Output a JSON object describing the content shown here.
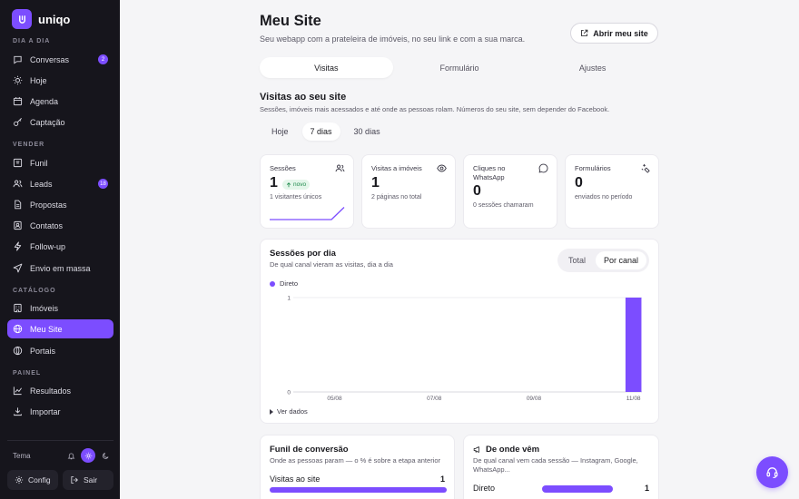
{
  "brand": {
    "name": "uniqo"
  },
  "sidebar": {
    "sections": [
      {
        "label": "DIA A DIA",
        "items": [
          {
            "label": "Conversas",
            "icon": "chat-icon",
            "badge": "2"
          },
          {
            "label": "Hoje",
            "icon": "sun-icon"
          },
          {
            "label": "Agenda",
            "icon": "calendar-icon"
          },
          {
            "label": "Captação",
            "icon": "key-icon"
          }
        ]
      },
      {
        "label": "VENDER",
        "items": [
          {
            "label": "Funil",
            "icon": "funnel-icon"
          },
          {
            "label": "Leads",
            "icon": "users-icon",
            "badge": "18"
          },
          {
            "label": "Propostas",
            "icon": "document-icon"
          },
          {
            "label": "Contatos",
            "icon": "contacts-icon"
          },
          {
            "label": "Follow-up",
            "icon": "bolt-icon"
          },
          {
            "label": "Envio em massa",
            "icon": "send-icon"
          }
        ]
      },
      {
        "label": "CATÁLOGO",
        "items": [
          {
            "label": "Imóveis",
            "icon": "building-icon"
          },
          {
            "label": "Meu Site",
            "icon": "globe-icon",
            "active": true
          },
          {
            "label": "Portais",
            "icon": "portal-icon"
          }
        ]
      },
      {
        "label": "PAINEL",
        "items": [
          {
            "label": "Resultados",
            "icon": "chart-icon"
          },
          {
            "label": "Importar",
            "icon": "download-icon"
          }
        ]
      }
    ],
    "theme_label": "Tema",
    "config_label": "Config",
    "logout_label": "Sair"
  },
  "header": {
    "title": "Meu Site",
    "subtitle": "Seu webapp com a prateleira de imóveis, no seu link e com a sua marca.",
    "open_site_label": "Abrir meu site"
  },
  "tabs": [
    "Visitas",
    "Formulário",
    "Ajustes"
  ],
  "visits": {
    "title": "Visitas ao seu site",
    "subtitle": "Sessões, imóveis mais acessados e até onde as pessoas rolam. Números do seu site, sem depender do Facebook.",
    "periods": [
      "Hoje",
      "7 dias",
      "30 dias"
    ],
    "active_period": "7 dias"
  },
  "kpis": [
    {
      "title": "Sessões",
      "value": "1",
      "badge": "novo",
      "foot": "1 visitantes únicos",
      "icon": "users-icon"
    },
    {
      "title": "Visitas a imóveis",
      "value": "1",
      "foot": "2 páginas no total",
      "icon": "eye-icon"
    },
    {
      "title": "Cliques no WhatsApp",
      "value": "0",
      "foot": "0 sessões chamaram",
      "icon": "whatsapp-icon"
    },
    {
      "title": "Formulários",
      "value": "0",
      "foot": "enviados no período",
      "icon": "sparkle-icon"
    }
  ],
  "sessions_chart": {
    "title": "Sessões por dia",
    "subtitle": "De qual canal vieram as visitas, dia a dia",
    "toggle": [
      "Total",
      "Por canal"
    ],
    "active_toggle": "Por canal",
    "see_data_label": "Ver dados"
  },
  "chart_data": {
    "type": "bar",
    "stacked": true,
    "categories": [
      "05/08",
      "06/08",
      "07/08",
      "08/08",
      "09/08",
      "10/08",
      "11/08"
    ],
    "tick_labels": [
      "05/08",
      "07/08",
      "09/08",
      "11/08"
    ],
    "series": [
      {
        "name": "Direto",
        "values": [
          0,
          0,
          0,
          0,
          0,
          0,
          1
        ],
        "color": "#7c4dff"
      }
    ],
    "ylim": [
      0,
      1
    ],
    "yticks": [
      0,
      1
    ],
    "grid": true,
    "legend": "top-left"
  },
  "funnel": {
    "title": "Funil de conversão",
    "subtitle": "Onde as pessoas param — o % é sobre a etapa anterior",
    "rows": [
      {
        "label": "Visitas ao site",
        "value": "1",
        "fraction": 1.0
      }
    ]
  },
  "origin": {
    "title": "De onde vêm",
    "subtitle": "De qual canal vem cada sessão — Instagram, Google, WhatsApp...",
    "rows": [
      {
        "label": "Direto",
        "value": "1",
        "fraction": 1.0
      }
    ]
  },
  "colors": {
    "accent": "#7c4dff",
    "sidebar_bg": "#16151c",
    "page_bg": "#f5f5f7",
    "success": "#1f8a4c"
  }
}
